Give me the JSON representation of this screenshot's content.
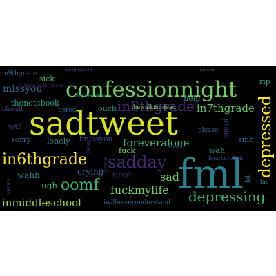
{
  "palette": {
    "background": "#000000",
    "yellow": "#fde725",
    "lime": "#b5de2b",
    "green": "#6ece58",
    "mint": "#35b779",
    "teal": "#1f9e89",
    "blue_teal": "#26828e",
    "blue": "#31688e",
    "indigo": "#3e4989",
    "purple": "#482878",
    "dark_purple": "#440154"
  },
  "words": [
    {
      "id": "w1",
      "text": "sadtweet",
      "color": "#d8e219"
    },
    {
      "id": "w2",
      "text": "fml",
      "color": "#26828e"
    },
    {
      "id": "w3",
      "text": "confessionnight",
      "color": "#6ece58"
    },
    {
      "id": "w4",
      "text": "in6thgrade",
      "color": "#fde725"
    },
    {
      "id": "w5",
      "text": "depressed",
      "color": "#fde725"
    },
    {
      "id": "w6",
      "text": "sadday",
      "color": "#482878"
    },
    {
      "id": "w7",
      "text": "oomf",
      "color": "#35b779"
    },
    {
      "id": "w8",
      "text": "fuckmylife",
      "color": "#6ece58"
    },
    {
      "id": "w9",
      "text": "depressing",
      "color": "#35b779"
    },
    {
      "id": "w10",
      "text": "inmiddleschool",
      "color": "#a0da39"
    },
    {
      "id": "w11",
      "text": "in8thgrade",
      "color": "#482878"
    },
    {
      "id": "w12",
      "text": "in7thgrade",
      "color": "#5ec962"
    },
    {
      "id": "w13",
      "text": "foreveralone",
      "color": "#35b779"
    },
    {
      "id": "w14",
      "text": "missyou",
      "color": "#31688e"
    },
    {
      "id": "w15",
      "text": "sad",
      "color": "#6ece58"
    },
    {
      "id": "w16",
      "text": "crying",
      "color": "#31688e"
    },
    {
      "id": "w17",
      "text": "wahh",
      "color": "#26828e"
    },
    {
      "id": "w18",
      "text": "ugh",
      "color": "#35b779"
    },
    {
      "id": "w19",
      "text": "sorry",
      "color": "#31688e"
    },
    {
      "id": "w20",
      "text": "wtf",
      "color": "#3e4989"
    },
    {
      "id": "w21",
      "text": "lonely",
      "color": "#26828e"
    },
    {
      "id": "w22",
      "text": "imissyou",
      "color": "#3e4989"
    },
    {
      "id": "w23",
      "text": "ouch",
      "color": "#1f9e89"
    },
    {
      "id": "w24",
      "text": "thenotebook",
      "color": "#1f9e89"
    },
    {
      "id": "w25",
      "text": "help",
      "color": "#26828e"
    },
    {
      "id": "w26",
      "text": "rip",
      "color": "#1f9e89"
    },
    {
      "id": "w27",
      "text": "sick",
      "color": "#35b779"
    },
    {
      "id": "w28",
      "text": "in9thgrade",
      "color": "#31688e"
    },
    {
      "id": "w29",
      "text": "tired",
      "color": "#482878"
    },
    {
      "id": "w30",
      "text": "fuck",
      "color": "#6ece58"
    },
    {
      "id": "w31",
      "text": "wah",
      "color": "#1f9e89"
    },
    {
      "id": "w32",
      "text": "smh",
      "color": "#31688e"
    },
    {
      "id": "w33",
      "text": "sosad",
      "color": "#3e4989"
    },
    {
      "id": "w34",
      "text": "please",
      "color": "#31688e"
    },
    {
      "id": "w35",
      "text": "heartbroken",
      "color": "#3e4989"
    },
    {
      "id": "w36",
      "text": "lol",
      "color": "#31688e"
    },
    {
      "id": "w37",
      "text": "fail",
      "color": "#26828e"
    },
    {
      "id": "w38",
      "text": "ohwell",
      "color": "#3e4989"
    },
    {
      "id": "w39",
      "text": "bored",
      "color": "#31688e"
    },
    {
      "id": "w40",
      "text": "depression",
      "color": "#26828e"
    },
    {
      "id": "w41",
      "text": "thewalkingdead",
      "color": "#6ece58"
    },
    {
      "id": "w42",
      "text": "iwillneverunderstand",
      "color": "#31688e"
    },
    {
      "id": "w43",
      "text": "disappointed",
      "color": "#3e4989"
    },
    {
      "id": "w44",
      "text": "notcool",
      "color": "#31688e"
    },
    {
      "id": "w45",
      "text": "firstworldproblems",
      "color": "#482878"
    },
    {
      "id": "w46",
      "text": "sucks",
      "color": "#3e4989"
    },
    {
      "id": "w47",
      "text": "forever",
      "color": "#3e4989"
    },
    {
      "id": "w48",
      "text": "scared",
      "color": "#31688e"
    },
    {
      "id": "w49",
      "text": "frown",
      "color": "#3e4989"
    }
  ]
}
